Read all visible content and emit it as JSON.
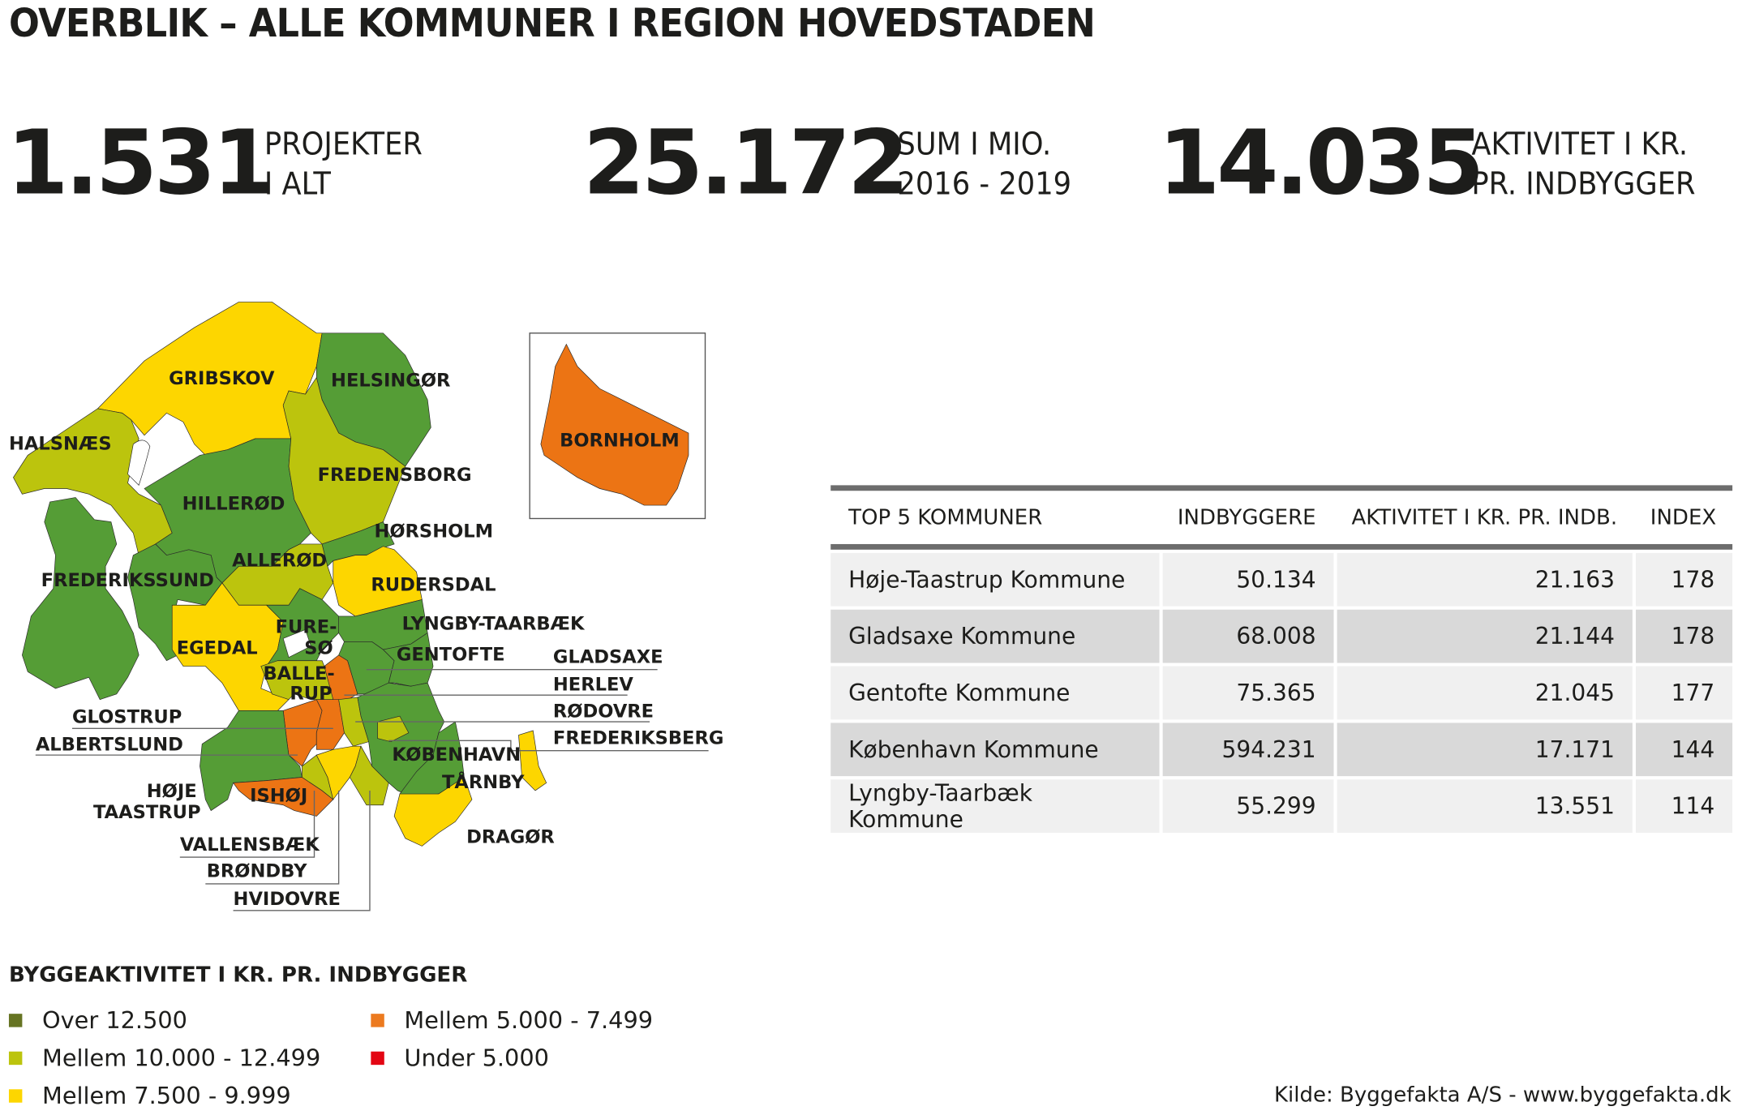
{
  "title": "OVERBLIK – ALLE KOMMUNER I REGION HOVEDSTADEN",
  "stats": [
    {
      "value": "1.531",
      "line1": "PROJEKTER",
      "line2": "I ALT"
    },
    {
      "value": "25.172",
      "line1": "SUM I MIO.",
      "line2": "2016 - 2019"
    },
    {
      "value": "14.035",
      "line1": "AKTIVITET I KR.",
      "line2": "PR. INDBYGGER"
    }
  ],
  "legend": {
    "title": "BYGGEAKTIVITET I KR. PR. INDBYGGER",
    "items": [
      {
        "label": "Over 12.500",
        "color": "#667423"
      },
      {
        "label": "Mellem 10.000 - 12.499",
        "color": "#bcc40d"
      },
      {
        "label": "Mellem 7.500 - 9.999",
        "color": "#fdd600"
      },
      {
        "label": "Mellem 5.000 - 7.499",
        "color": "#ec7a1f"
      },
      {
        "label": "Under 5.000",
        "color": "#e30613"
      }
    ]
  },
  "map_colors": {
    "green": "#559d36",
    "yellowgreen": "#bcc40d",
    "yellow": "#fdd600",
    "orange": "#ec7414"
  },
  "map": {
    "regions": [
      {
        "name": "GRIBSKOV",
        "cls": "yellow"
      },
      {
        "name": "HELSINGØR",
        "cls": "green"
      },
      {
        "name": "HALSNÆS",
        "cls": "yellowgreen"
      },
      {
        "name": "HILLERØD",
        "cls": "green"
      },
      {
        "name": "FREDENSBORG",
        "cls": "yellowgreen"
      },
      {
        "name": "FREDERIKSSUND",
        "cls": "green"
      },
      {
        "name": "ALLERØD",
        "cls": "yellowgreen"
      },
      {
        "name": "HØRSHOLM",
        "cls": "green"
      },
      {
        "name": "RUDERSDAL",
        "cls": "yellow"
      },
      {
        "name": "LYNGBY-TAARBÆK",
        "cls": "green"
      },
      {
        "name": "EGEDAL",
        "cls": "yellow"
      },
      {
        "name": "FURESØ",
        "cls": "green"
      },
      {
        "name": "BALLERUP",
        "cls": "yellowgreen"
      },
      {
        "name": "HERLEV",
        "cls": "orange"
      },
      {
        "name": "GLADSAXE",
        "cls": "green"
      },
      {
        "name": "GENTOFTE",
        "cls": "green"
      },
      {
        "name": "ALBERTSLUND",
        "cls": "orange"
      },
      {
        "name": "GLOSTRUP",
        "cls": "orange"
      },
      {
        "name": "RØDOVRE",
        "cls": "yellowgreen"
      },
      {
        "name": "HØJE TAASTRUP",
        "cls": "green"
      },
      {
        "name": "ISHØJ",
        "cls": "orange"
      },
      {
        "name": "VALLENSBÆK",
        "cls": "yellowgreen"
      },
      {
        "name": "BRØNDBY",
        "cls": "yellow"
      },
      {
        "name": "HVIDOVRE",
        "cls": "yellowgreen"
      },
      {
        "name": "FREDERIKSBERG",
        "cls": "yellowgreen"
      },
      {
        "name": "KØBENHAVN",
        "cls": "green"
      },
      {
        "name": "TÅRNBY",
        "cls": "yellow"
      },
      {
        "name": "DRAGØR",
        "cls": "yellow"
      },
      {
        "name": "BORNHOLM",
        "cls": "orange"
      }
    ],
    "split_labels": {
      "fure": [
        "FURE-",
        "SØ"
      ],
      "balle": [
        "BALLE-",
        "RUP"
      ],
      "hoeje": [
        "HØJE",
        "TAASTRUP"
      ]
    }
  },
  "table": {
    "headers": [
      "TOP 5 KOMMUNER",
      "INDBYGGERE",
      "AKTIVITET I KR. PR. INDB.",
      "INDEX"
    ],
    "rows": [
      [
        "Høje-Taastrup Kommune",
        "50.134",
        "21.163",
        "178"
      ],
      [
        "Gladsaxe Kommune",
        "68.008",
        "21.144",
        "178"
      ],
      [
        "Gentofte Kommune",
        "75.365",
        "21.045",
        "177"
      ],
      [
        "København Kommune",
        "594.231",
        "17.171",
        "144"
      ],
      [
        "Lyngby-Taarbæk Kommune",
        "55.299",
        "13.551",
        "114"
      ]
    ],
    "row_colors": [
      "#f0f0f0",
      "#d9d9d9"
    ]
  },
  "chart_data": {
    "type": "table",
    "title": "TOP 5 KOMMUNER",
    "columns": [
      "TOP 5 KOMMUNER",
      "INDBYGGERE",
      "AKTIVITET I KR. PR. INDB.",
      "INDEX"
    ],
    "rows": [
      [
        "Høje-Taastrup Kommune",
        50134,
        21163,
        178
      ],
      [
        "Gladsaxe Kommune",
        68008,
        21144,
        178
      ],
      [
        "Gentofte Kommune",
        75365,
        21045,
        177
      ],
      [
        "København Kommune",
        594231,
        17171,
        144
      ],
      [
        "Lyngby-Taarbæk Kommune",
        55299,
        13551,
        114
      ]
    ]
  },
  "source": "Kilde: Byggefakta A/S - www.byggefakta.dk"
}
